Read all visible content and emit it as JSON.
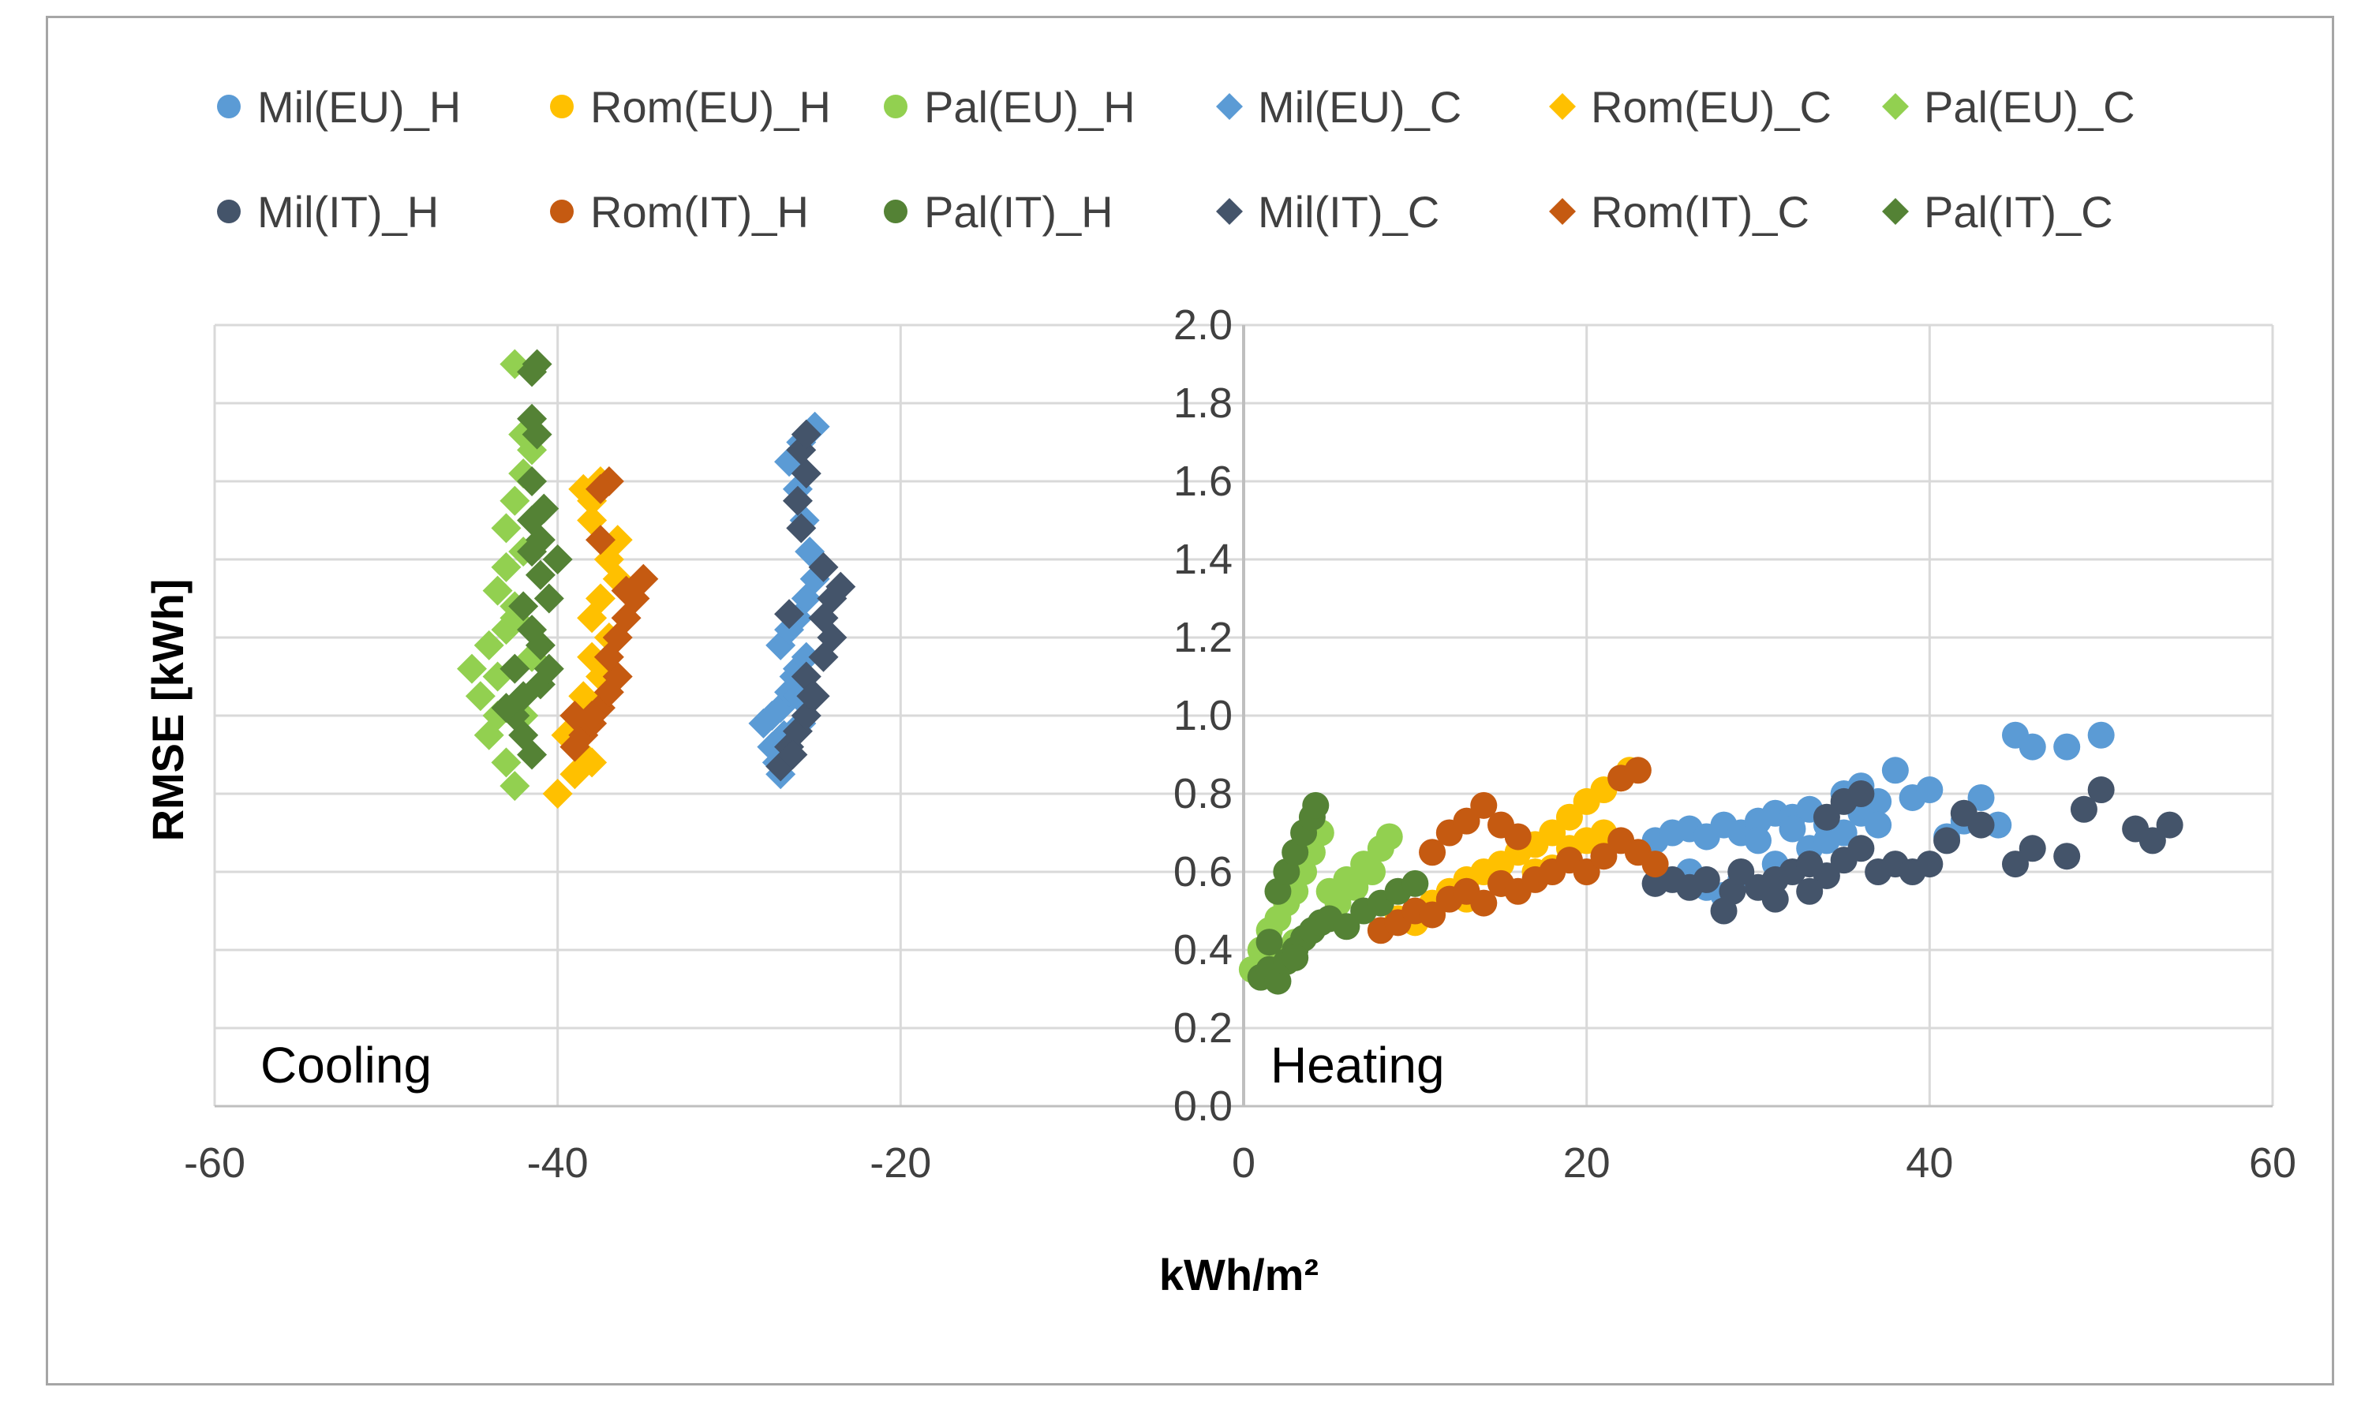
{
  "chart_data": {
    "type": "scatter",
    "xlabel": "kWh/m²",
    "ylabel": "RMSE [kWh]",
    "xlim": [
      -60,
      60
    ],
    "ylim": [
      0,
      2
    ],
    "x_ticks": [
      -60,
      -40,
      -20,
      0,
      20,
      40,
      60
    ],
    "y_ticks": [
      0.0,
      0.2,
      0.4,
      0.6,
      0.8,
      1.0,
      1.2,
      1.4,
      1.6,
      1.8,
      2.0
    ],
    "y_tick_labels": [
      "0.0",
      "0.2",
      "0.4",
      "0.6",
      "0.8",
      "1.0",
      "1.2",
      "1.4",
      "1.6",
      "1.8",
      "2.0"
    ],
    "grid": true,
    "legend_position": "top",
    "annotations": {
      "cooling": "Cooling",
      "heating": "Heating"
    },
    "series": [
      {
        "name": "Mil(EU)_H",
        "marker": "circle",
        "color": "#5B9BD5",
        "points": [
          [
            24,
            0.68
          ],
          [
            25,
            0.7
          ],
          [
            26,
            0.71
          ],
          [
            27,
            0.69
          ],
          [
            28,
            0.72
          ],
          [
            29,
            0.7
          ],
          [
            30,
            0.73
          ],
          [
            31,
            0.75
          ],
          [
            32,
            0.74
          ],
          [
            33,
            0.76
          ],
          [
            34,
            0.72
          ],
          [
            35,
            0.8
          ],
          [
            36,
            0.82
          ],
          [
            37,
            0.78
          ],
          [
            38,
            0.86
          ],
          [
            39,
            0.79
          ],
          [
            40,
            0.81
          ],
          [
            41,
            0.69
          ],
          [
            42,
            0.73
          ],
          [
            43,
            0.79
          ],
          [
            44,
            0.72
          ],
          [
            45,
            0.95
          ],
          [
            46,
            0.92
          ],
          [
            48,
            0.92
          ],
          [
            50,
            0.95
          ],
          [
            26,
            0.6
          ],
          [
            27,
            0.56
          ],
          [
            28,
            0.54
          ],
          [
            29,
            0.58
          ],
          [
            31,
            0.62
          ],
          [
            33,
            0.66
          ],
          [
            35,
            0.7
          ],
          [
            36,
            0.75
          ],
          [
            37,
            0.72
          ],
          [
            30,
            0.68
          ],
          [
            32,
            0.71
          ],
          [
            34,
            0.68
          ]
        ]
      },
      {
        "name": "Rom(EU)_H",
        "marker": "circle",
        "color": "#FFC000",
        "points": [
          [
            9,
            0.48
          ],
          [
            10,
            0.47
          ],
          [
            11,
            0.52
          ],
          [
            12,
            0.55
          ],
          [
            13,
            0.58
          ],
          [
            14,
            0.6
          ],
          [
            15,
            0.62
          ],
          [
            16,
            0.65
          ],
          [
            17,
            0.67
          ],
          [
            18,
            0.7
          ],
          [
            19,
            0.74
          ],
          [
            20,
            0.78
          ],
          [
            21,
            0.81
          ],
          [
            22,
            0.84
          ],
          [
            22.5,
            0.86
          ],
          [
            21,
            0.7
          ],
          [
            19,
            0.66
          ],
          [
            17,
            0.6
          ],
          [
            15,
            0.57
          ],
          [
            13,
            0.53
          ],
          [
            11,
            0.5
          ],
          [
            18,
            0.61
          ],
          [
            20,
            0.68
          ]
        ]
      },
      {
        "name": "Pal(EU)_H",
        "marker": "circle",
        "color": "#92D050",
        "points": [
          [
            0.5,
            0.35
          ],
          [
            1,
            0.4
          ],
          [
            1.5,
            0.45
          ],
          [
            2,
            0.48
          ],
          [
            2.5,
            0.52
          ],
          [
            3,
            0.55
          ],
          [
            3.5,
            0.6
          ],
          [
            4,
            0.65
          ],
          [
            4.5,
            0.7
          ],
          [
            5,
            0.55
          ],
          [
            6,
            0.58
          ],
          [
            7,
            0.62
          ],
          [
            8,
            0.66
          ],
          [
            8.5,
            0.69
          ],
          [
            5.5,
            0.52
          ],
          [
            6.5,
            0.56
          ],
          [
            7.5,
            0.6
          ],
          [
            3,
            0.42
          ],
          [
            2,
            0.38
          ],
          [
            1,
            0.34
          ]
        ]
      },
      {
        "name": "Mil(EU)_C",
        "marker": "diamond",
        "color": "#5B9BD5",
        "points": [
          [
            -27,
            0.85
          ],
          [
            -27.5,
            0.92
          ],
          [
            -28,
            0.98
          ],
          [
            -27,
            1.02
          ],
          [
            -26.5,
            1.06
          ],
          [
            -26,
            1.12
          ],
          [
            -27,
            1.18
          ],
          [
            -26.5,
            1.22
          ],
          [
            -26,
            1.25
          ],
          [
            -25.5,
            1.15
          ],
          [
            -26,
            1.05
          ],
          [
            -25.8,
            0.98
          ],
          [
            -26.8,
            0.95
          ],
          [
            -27.2,
            0.88
          ],
          [
            -25.5,
            1.3
          ],
          [
            -25,
            1.35
          ],
          [
            -25.3,
            1.42
          ],
          [
            -25.6,
            1.5
          ],
          [
            -26,
            1.58
          ],
          [
            -26.5,
            1.65
          ],
          [
            -25.8,
            1.7
          ],
          [
            -25,
            1.74
          ],
          [
            -26.2,
            1.1
          ],
          [
            -27.5,
            1.0
          ]
        ]
      },
      {
        "name": "Rom(EU)_C",
        "marker": "diamond",
        "color": "#FFC000",
        "points": [
          [
            -40,
            0.8
          ],
          [
            -39,
            0.85
          ],
          [
            -38.5,
            0.9
          ],
          [
            -39.5,
            0.95
          ],
          [
            -38,
            1.0
          ],
          [
            -38.5,
            1.05
          ],
          [
            -37.5,
            1.1
          ],
          [
            -38,
            1.15
          ],
          [
            -37,
            1.2
          ],
          [
            -38,
            1.25
          ],
          [
            -37.5,
            1.3
          ],
          [
            -36.5,
            1.35
          ],
          [
            -37,
            1.4
          ],
          [
            -36.5,
            1.45
          ],
          [
            -38,
            1.5
          ],
          [
            -38.5,
            1.58
          ],
          [
            -37.5,
            1.6
          ],
          [
            -38,
            1.55
          ],
          [
            -39,
            1.0
          ],
          [
            -38,
            0.88
          ]
        ]
      },
      {
        "name": "Pal(EU)_C",
        "marker": "diamond",
        "color": "#92D050",
        "points": [
          [
            -42.5,
            0.82
          ],
          [
            -43,
            0.88
          ],
          [
            -44,
            0.95
          ],
          [
            -43.5,
            1.0
          ],
          [
            -44.5,
            1.05
          ],
          [
            -45,
            1.12
          ],
          [
            -44,
            1.18
          ],
          [
            -43,
            1.22
          ],
          [
            -42.5,
            1.28
          ],
          [
            -43.5,
            1.32
          ],
          [
            -43,
            1.38
          ],
          [
            -42,
            1.42
          ],
          [
            -43,
            1.48
          ],
          [
            -42.5,
            1.55
          ],
          [
            -42,
            1.62
          ],
          [
            -41.5,
            1.68
          ],
          [
            -42,
            1.72
          ],
          [
            -42.5,
            1.9
          ],
          [
            -43.5,
            1.1
          ],
          [
            -42,
            1.0
          ],
          [
            -41.5,
            1.15
          ],
          [
            -42.5,
            1.25
          ]
        ]
      },
      {
        "name": "Mil(IT)_H",
        "marker": "circle",
        "color": "#44546A",
        "points": [
          [
            24,
            0.57
          ],
          [
            25,
            0.58
          ],
          [
            26,
            0.56
          ],
          [
            27,
            0.58
          ],
          [
            28,
            0.5
          ],
          [
            28.5,
            0.55
          ],
          [
            29,
            0.6
          ],
          [
            30,
            0.56
          ],
          [
            31,
            0.58
          ],
          [
            32,
            0.6
          ],
          [
            33,
            0.62
          ],
          [
            34,
            0.59
          ],
          [
            35,
            0.63
          ],
          [
            36,
            0.66
          ],
          [
            37,
            0.6
          ],
          [
            38,
            0.62
          ],
          [
            39,
            0.6
          ],
          [
            40,
            0.62
          ],
          [
            41,
            0.68
          ],
          [
            42,
            0.75
          ],
          [
            43,
            0.72
          ],
          [
            45,
            0.62
          ],
          [
            46,
            0.66
          ],
          [
            48,
            0.64
          ],
          [
            49,
            0.76
          ],
          [
            50,
            0.81
          ],
          [
            52,
            0.71
          ],
          [
            53,
            0.68
          ],
          [
            54,
            0.72
          ],
          [
            36,
            0.8
          ],
          [
            35,
            0.78
          ],
          [
            34,
            0.74
          ],
          [
            31,
            0.53
          ],
          [
            33,
            0.55
          ]
        ]
      },
      {
        "name": "Rom(IT)_H",
        "marker": "circle",
        "color": "#C55A11",
        "points": [
          [
            8,
            0.45
          ],
          [
            9,
            0.47
          ],
          [
            10,
            0.5
          ],
          [
            11,
            0.49
          ],
          [
            12,
            0.53
          ],
          [
            13,
            0.55
          ],
          [
            14,
            0.52
          ],
          [
            15,
            0.57
          ],
          [
            16,
            0.55
          ],
          [
            17,
            0.58
          ],
          [
            18,
            0.6
          ],
          [
            19,
            0.63
          ],
          [
            20,
            0.6
          ],
          [
            21,
            0.64
          ],
          [
            22,
            0.68
          ],
          [
            23,
            0.65
          ],
          [
            24,
            0.62
          ],
          [
            22,
            0.84
          ],
          [
            23,
            0.86
          ],
          [
            11,
            0.65
          ],
          [
            12,
            0.7
          ],
          [
            13,
            0.73
          ],
          [
            14,
            0.77
          ],
          [
            15,
            0.72
          ],
          [
            16,
            0.69
          ]
        ]
      },
      {
        "name": "Pal(IT)_H",
        "marker": "circle",
        "color": "#548235",
        "points": [
          [
            1,
            0.33
          ],
          [
            1.5,
            0.35
          ],
          [
            2,
            0.32
          ],
          [
            2.5,
            0.37
          ],
          [
            3,
            0.4
          ],
          [
            3.5,
            0.43
          ],
          [
            4,
            0.45
          ],
          [
            4.5,
            0.47
          ],
          [
            5,
            0.48
          ],
          [
            6,
            0.46
          ],
          [
            7,
            0.5
          ],
          [
            8,
            0.52
          ],
          [
            9,
            0.55
          ],
          [
            10,
            0.57
          ],
          [
            2,
            0.55
          ],
          [
            2.5,
            0.6
          ],
          [
            3,
            0.65
          ],
          [
            3.5,
            0.7
          ],
          [
            4,
            0.74
          ],
          [
            4.2,
            0.77
          ],
          [
            1.5,
            0.42
          ],
          [
            3,
            0.38
          ]
        ]
      },
      {
        "name": "Mil(IT)_C",
        "marker": "diamond",
        "color": "#44546A",
        "points": [
          [
            -27,
            0.87
          ],
          [
            -26.5,
            0.92
          ],
          [
            -26,
            0.96
          ],
          [
            -25.5,
            1.0
          ],
          [
            -25,
            1.05
          ],
          [
            -25.5,
            1.1
          ],
          [
            -24.5,
            1.15
          ],
          [
            -24,
            1.2
          ],
          [
            -24.5,
            1.25
          ],
          [
            -24,
            1.3
          ],
          [
            -23.5,
            1.33
          ],
          [
            -24.5,
            1.38
          ],
          [
            -26.5,
            1.26
          ],
          [
            -25.8,
            1.48
          ],
          [
            -26,
            1.55
          ],
          [
            -25.5,
            1.62
          ],
          [
            -25.8,
            1.68
          ],
          [
            -25.5,
            1.72
          ],
          [
            -25.2,
            1.05
          ],
          [
            -26.3,
            0.9
          ]
        ]
      },
      {
        "name": "Rom(IT)_C",
        "marker": "diamond",
        "color": "#C55A11",
        "points": [
          [
            -39,
            0.92
          ],
          [
            -38.5,
            0.95
          ],
          [
            -38,
            0.98
          ],
          [
            -37.5,
            1.02
          ],
          [
            -37,
            1.06
          ],
          [
            -36.5,
            1.1
          ],
          [
            -37,
            1.15
          ],
          [
            -36.5,
            1.2
          ],
          [
            -36,
            1.25
          ],
          [
            -35.5,
            1.3
          ],
          [
            -35,
            1.35
          ],
          [
            -36,
            1.32
          ],
          [
            -37.5,
            1.45
          ],
          [
            -37,
            1.6
          ],
          [
            -37.5,
            1.58
          ],
          [
            -38,
            1.0
          ],
          [
            -39,
            1.0
          ]
        ]
      },
      {
        "name": "Pal(IT)_C",
        "marker": "diamond",
        "color": "#548235",
        "points": [
          [
            -41.5,
            0.9
          ],
          [
            -42,
            0.95
          ],
          [
            -42.5,
            1.0
          ],
          [
            -43,
            1.02
          ],
          [
            -42,
            1.05
          ],
          [
            -41,
            1.08
          ],
          [
            -40.5,
            1.12
          ],
          [
            -41,
            1.18
          ],
          [
            -41.5,
            1.22
          ],
          [
            -42,
            1.28
          ],
          [
            -40.5,
            1.3
          ],
          [
            -41,
            1.36
          ],
          [
            -41.5,
            1.42
          ],
          [
            -40,
            1.4
          ],
          [
            -41,
            1.45
          ],
          [
            -41.5,
            1.5
          ],
          [
            -40.8,
            1.53
          ],
          [
            -41.5,
            1.6
          ],
          [
            -41.2,
            1.72
          ],
          [
            -41.5,
            1.76
          ],
          [
            -41.5,
            1.88
          ],
          [
            -41.2,
            1.9
          ],
          [
            -42.5,
            1.12
          ]
        ]
      }
    ]
  }
}
